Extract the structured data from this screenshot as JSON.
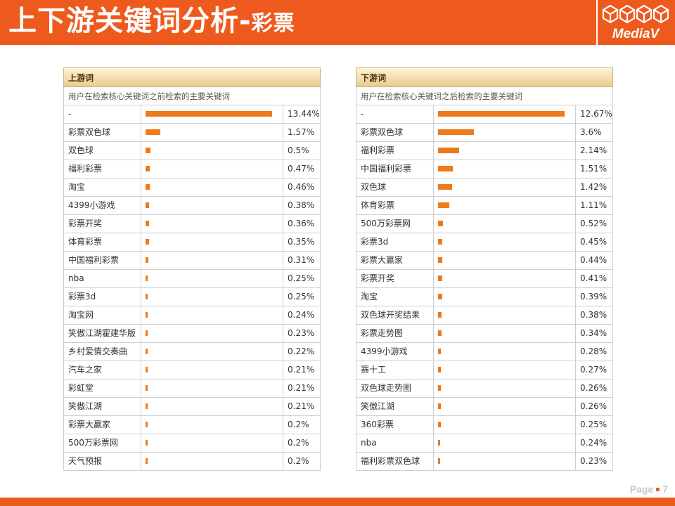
{
  "header": {
    "title_main": "上下游关键词分析-",
    "title_sub": "彩票",
    "logo_text": "MediaV"
  },
  "colors": {
    "brand": "#ee5a1e",
    "bar": "#ef7a1a"
  },
  "upstream": {
    "heading": "上游词",
    "description": "用户在检索核心关键词之前检索的主要关键词",
    "rows": [
      {
        "keyword": "-",
        "percent": "13.44%",
        "value": 13.44
      },
      {
        "keyword": "彩票双色球",
        "percent": "1.57%",
        "value": 1.57
      },
      {
        "keyword": "双色球",
        "percent": "0.5%",
        "value": 0.5
      },
      {
        "keyword": "福利彩票",
        "percent": "0.47%",
        "value": 0.47
      },
      {
        "keyword": "淘宝",
        "percent": "0.46%",
        "value": 0.46
      },
      {
        "keyword": "4399小游戏",
        "percent": "0.38%",
        "value": 0.38
      },
      {
        "keyword": "彩票开奖",
        "percent": "0.36%",
        "value": 0.36
      },
      {
        "keyword": "体育彩票",
        "percent": "0.35%",
        "value": 0.35
      },
      {
        "keyword": "中国福利彩票",
        "percent": "0.31%",
        "value": 0.31
      },
      {
        "keyword": "nba",
        "percent": "0.25%",
        "value": 0.25
      },
      {
        "keyword": "彩票3d",
        "percent": "0.25%",
        "value": 0.25
      },
      {
        "keyword": "淘宝网",
        "percent": "0.24%",
        "value": 0.24
      },
      {
        "keyword": "笑傲江湖霍建华版",
        "percent": "0.23%",
        "value": 0.23
      },
      {
        "keyword": "乡村爱情交奏曲",
        "percent": "0.22%",
        "value": 0.22
      },
      {
        "keyword": "汽车之家",
        "percent": "0.21%",
        "value": 0.21
      },
      {
        "keyword": "彩虹堂",
        "percent": "0.21%",
        "value": 0.21
      },
      {
        "keyword": "笑傲江湖",
        "percent": "0.21%",
        "value": 0.21
      },
      {
        "keyword": "彩票大赢家",
        "percent": "0.2%",
        "value": 0.2
      },
      {
        "keyword": "500万彩票网",
        "percent": "0.2%",
        "value": 0.2
      },
      {
        "keyword": "天气预报",
        "percent": "0.2%",
        "value": 0.2
      }
    ]
  },
  "downstream": {
    "heading": "下游词",
    "description": "用户在检索核心关键词之后检索的主要关键词",
    "rows": [
      {
        "keyword": "-",
        "percent": "12.67%",
        "value": 12.67
      },
      {
        "keyword": "彩票双色球",
        "percent": "3.6%",
        "value": 3.6
      },
      {
        "keyword": "福利彩票",
        "percent": "2.14%",
        "value": 2.14
      },
      {
        "keyword": "中国福利彩票",
        "percent": "1.51%",
        "value": 1.51
      },
      {
        "keyword": "双色球",
        "percent": "1.42%",
        "value": 1.42
      },
      {
        "keyword": "体育彩票",
        "percent": "1.11%",
        "value": 1.11
      },
      {
        "keyword": "500万彩票网",
        "percent": "0.52%",
        "value": 0.52
      },
      {
        "keyword": "彩票3d",
        "percent": "0.45%",
        "value": 0.45
      },
      {
        "keyword": "彩票大赢家",
        "percent": "0.44%",
        "value": 0.44
      },
      {
        "keyword": "彩票开奖",
        "percent": "0.41%",
        "value": 0.41
      },
      {
        "keyword": "淘宝",
        "percent": "0.39%",
        "value": 0.39
      },
      {
        "keyword": "双色球开奖结果",
        "percent": "0.38%",
        "value": 0.38
      },
      {
        "keyword": "彩票走势图",
        "percent": "0.34%",
        "value": 0.34
      },
      {
        "keyword": "4399小游戏",
        "percent": "0.28%",
        "value": 0.28
      },
      {
        "keyword": "赛十工",
        "percent": "0.27%",
        "value": 0.27
      },
      {
        "keyword": "双色球走势图",
        "percent": "0.26%",
        "value": 0.26
      },
      {
        "keyword": "笑傲江湖",
        "percent": "0.26%",
        "value": 0.26
      },
      {
        "keyword": "360彩票",
        "percent": "0.25%",
        "value": 0.25
      },
      {
        "keyword": "nba",
        "percent": "0.24%",
        "value": 0.24
      },
      {
        "keyword": "福利彩票双色球",
        "percent": "0.23%",
        "value": 0.23
      }
    ]
  },
  "footer": {
    "page_label": "Page",
    "page_number": "7"
  }
}
